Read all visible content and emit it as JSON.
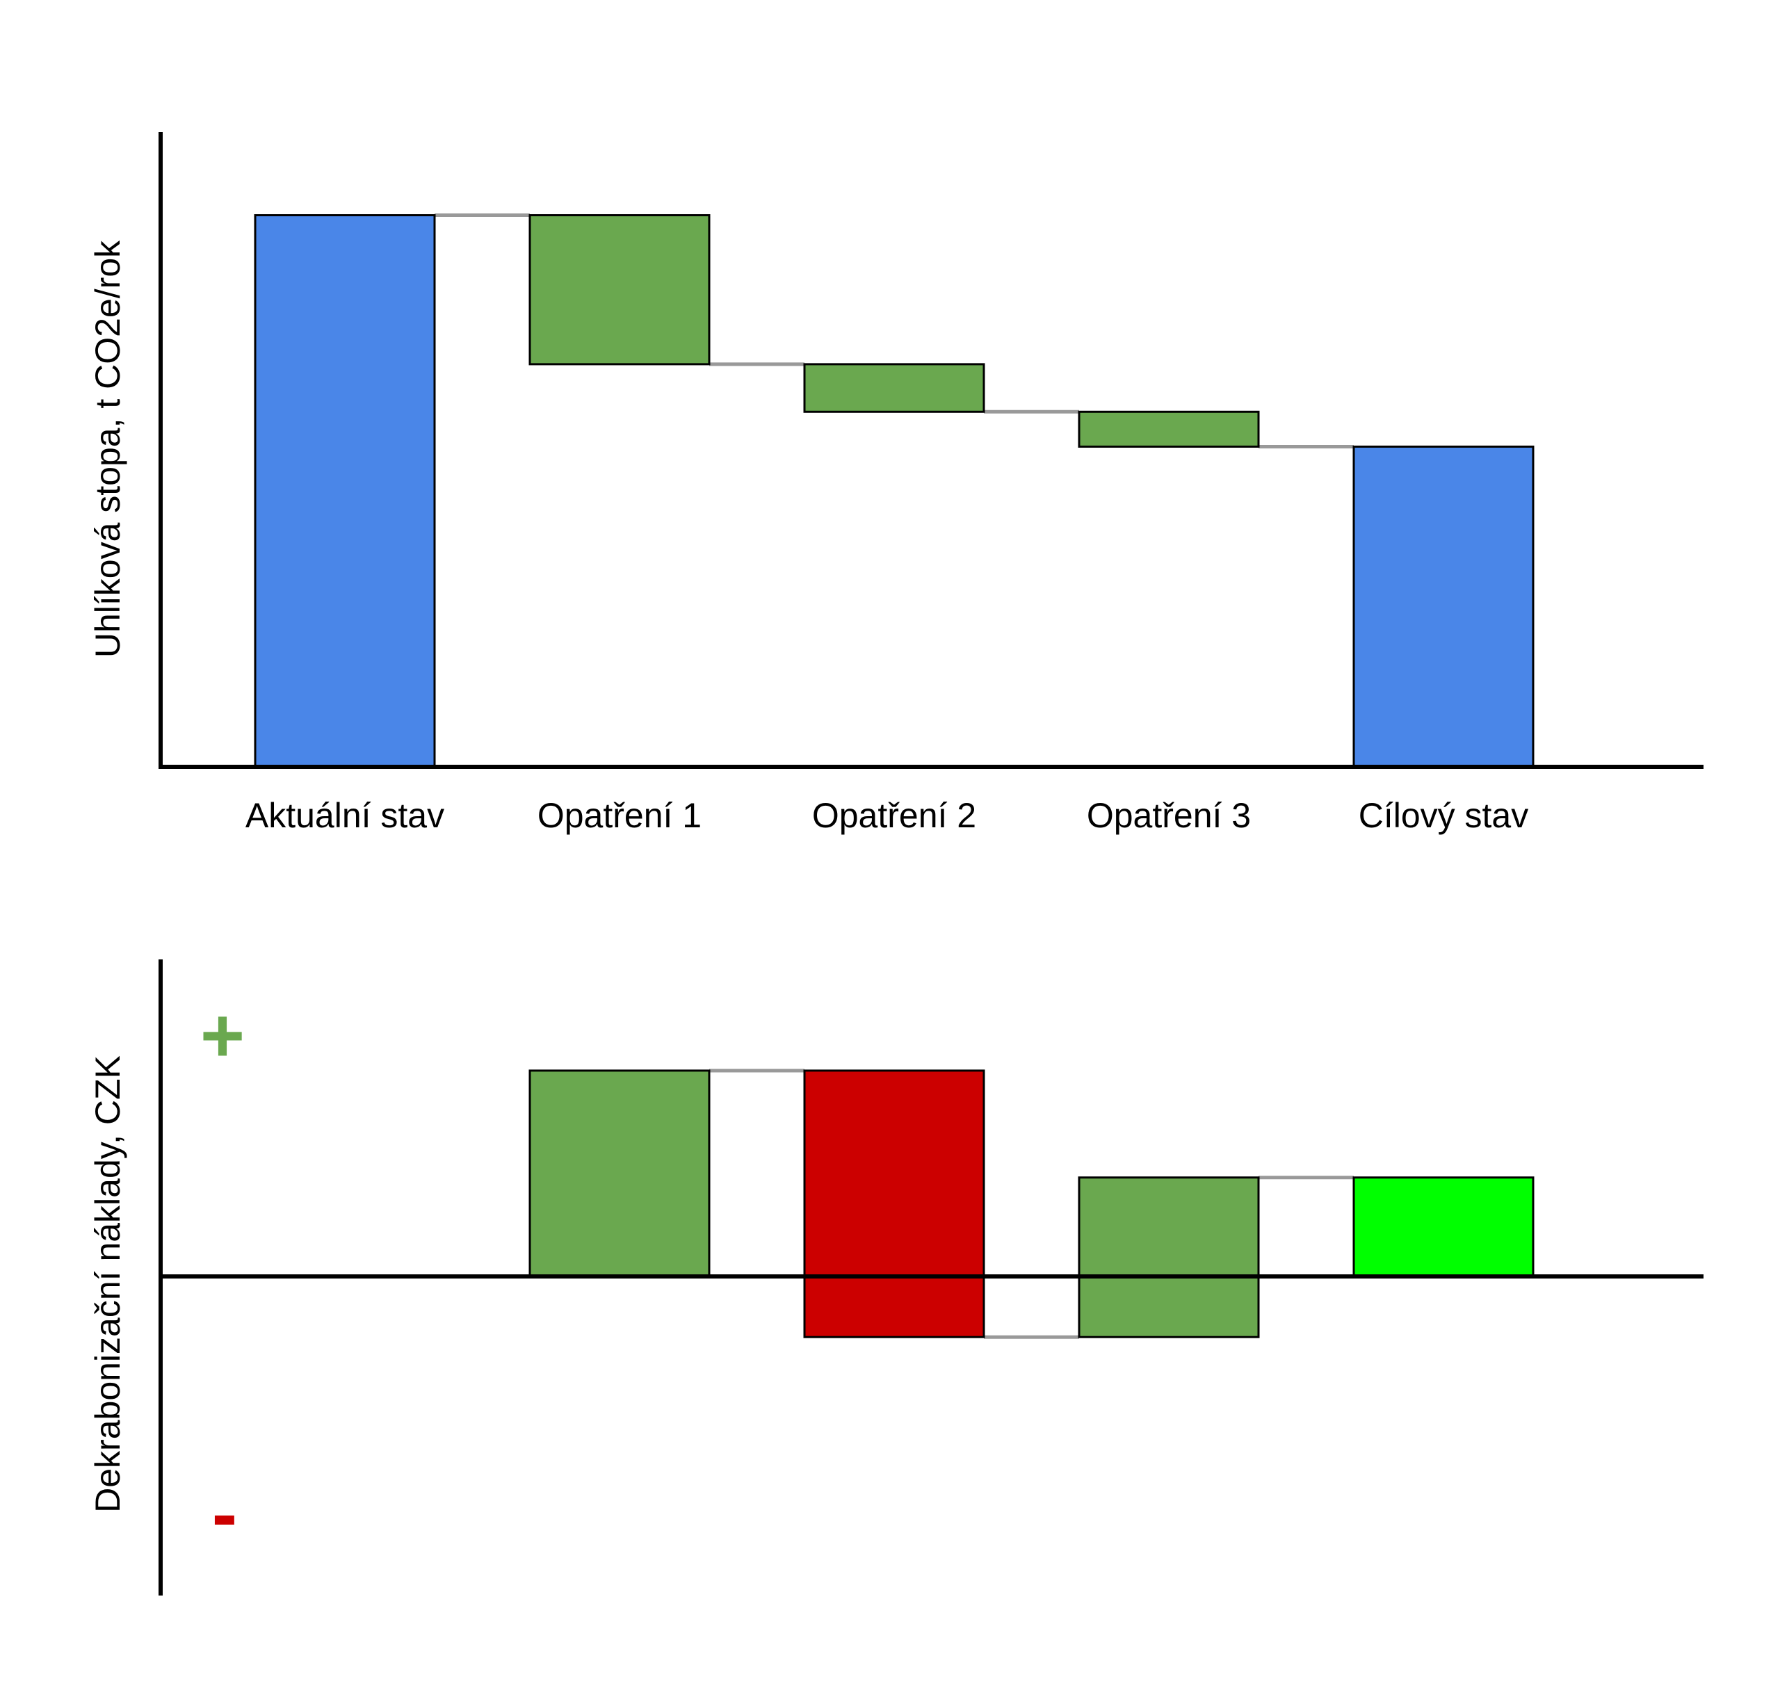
{
  "chart_data": [
    {
      "type": "waterfall",
      "ylabel": "Uhlíková stopa, t CO2e/rok",
      "categories": [
        "Aktuální stav",
        "Opatření 1",
        "Opatření 2",
        "Opatření 3",
        "Cílový stav"
      ],
      "ylim": [
        0,
        100
      ],
      "bars": [
        {
          "label": "Aktuální stav",
          "kind": "total",
          "start": 0,
          "end": 87,
          "color": "#4a86e8"
        },
        {
          "label": "Opatření 1",
          "kind": "delta",
          "start": 87,
          "end": 63.5,
          "color": "#6aa84f"
        },
        {
          "label": "Opatření 2",
          "kind": "delta",
          "start": 63.5,
          "end": 56,
          "color": "#6aa84f"
        },
        {
          "label": "Opatření 3",
          "kind": "delta",
          "start": 56,
          "end": 50.5,
          "color": "#6aa84f"
        },
        {
          "label": "Cílový stav",
          "kind": "total",
          "start": 0,
          "end": 50.5,
          "color": "#4a86e8"
        }
      ],
      "connector_color": "#999999",
      "grid": false
    },
    {
      "type": "waterfall",
      "ylabel": "Dekrabonizační náklady, CZK",
      "positive_marker": "+",
      "negative_marker": "-",
      "positive_color": "#6aa84f",
      "negative_color": "#cc0000",
      "ylim": [
        -100,
        100
      ],
      "bars": [
        {
          "label": "Opatření 1",
          "start": 0,
          "end": 64.5,
          "color": "#6aa84f"
        },
        {
          "label": "Opatření 2",
          "start": 64.5,
          "end": -19,
          "color": "#cc0000"
        },
        {
          "label": "Opatření 3",
          "start": -19,
          "end": 31,
          "color": "#6aa84f"
        },
        {
          "label": "Cílový stav",
          "start": 0,
          "end": 31,
          "color": "#00ff00"
        }
      ],
      "connector_color": "#999999",
      "grid": false
    }
  ]
}
